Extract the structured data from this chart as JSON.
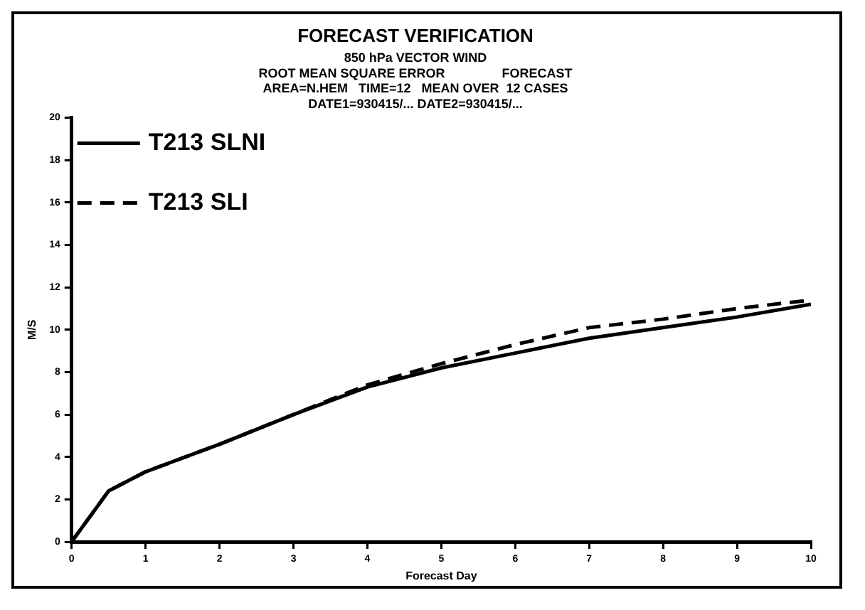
{
  "chart_data": {
    "type": "line",
    "title": "FORECAST VERIFICATION",
    "subtitle": "850 hPa VECTOR WIND",
    "annotations": [
      "ROOT MEAN SQUARE ERROR                FORECAST",
      "AREA=N.HEM   TIME=12   MEAN OVER  12 CASES",
      "DATE1=930415/... DATE2=930415/..."
    ],
    "xlabel": "Forecast Day",
    "ylabel": "M/S",
    "x": [
      0,
      0.5,
      1,
      2,
      3,
      4,
      5,
      6,
      7,
      8,
      9,
      10
    ],
    "series": [
      {
        "name": "T213 SLNI",
        "color": "#000000",
        "line_style": "solid",
        "values": [
          0,
          2.4,
          3.3,
          4.6,
          6.0,
          7.3,
          8.2,
          8.9,
          9.6,
          10.1,
          10.6,
          11.2
        ]
      },
      {
        "name": "T213 SLI",
        "color": "#000000",
        "line_style": "dashed",
        "values": [
          0,
          2.4,
          3.3,
          4.6,
          6.0,
          7.4,
          8.4,
          9.3,
          10.1,
          10.5,
          11.0,
          11.4
        ]
      }
    ],
    "xlim": [
      0,
      10
    ],
    "xticks": [
      0,
      1,
      2,
      3,
      4,
      5,
      6,
      7,
      8,
      9,
      10
    ],
    "ylim": [
      0,
      20
    ],
    "yticks": [
      0,
      2,
      4,
      6,
      8,
      10,
      12,
      14,
      16,
      18,
      20
    ],
    "grid": false,
    "legend": "top left",
    "marker": "none"
  }
}
